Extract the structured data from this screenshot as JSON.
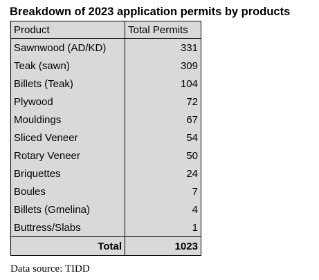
{
  "title": "Breakdown of 2023 application permits by products",
  "table": {
    "headers": [
      "Product",
      "Total Permits"
    ],
    "rows": [
      {
        "product": "Sawnwood (AD/KD)",
        "permits": "331"
      },
      {
        "product": "Teak (sawn)",
        "permits": "309"
      },
      {
        "product": "Billets (Teak)",
        "permits": "104"
      },
      {
        "product": "Plywood",
        "permits": "72"
      },
      {
        "product": "Mouldings",
        "permits": "67"
      },
      {
        "product": "Sliced Veneer",
        "permits": "54"
      },
      {
        "product": "Rotary Veneer",
        "permits": "50"
      },
      {
        "product": "Briquettes",
        "permits": "24"
      },
      {
        "product": "Boules",
        "permits": "7"
      },
      {
        "product": "Billets (Gmelina)",
        "permits": "4"
      },
      {
        "product": "Buttress/Slabs",
        "permits": "1"
      }
    ],
    "total_label": "Total",
    "total_value": "1023"
  },
  "source": "Data source: TIDD",
  "colors": {
    "table_fill": "#d9d9d9",
    "border": "#000000",
    "text": "#000000"
  }
}
